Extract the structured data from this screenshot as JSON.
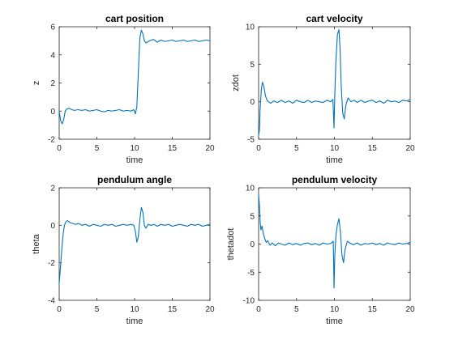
{
  "chart_data": [
    {
      "type": "line",
      "title": "cart position",
      "xlabel": "time",
      "ylabel": "z",
      "xlim": [
        0,
        20
      ],
      "ylim": [
        -2,
        6
      ],
      "xticks": [
        "0",
        "5",
        "10",
        "15",
        "20"
      ],
      "yticks": [
        "-2",
        "0",
        "2",
        "4",
        "6"
      ],
      "grid": false,
      "series": [
        {
          "color": "#0072BD",
          "x": [
            0,
            0.2,
            0.4,
            0.6,
            0.8,
            1.0,
            1.3,
            1.7,
            2.0,
            2.5,
            3.0,
            3.5,
            4.0,
            4.5,
            5.0,
            5.5,
            6.0,
            6.5,
            7.0,
            7.5,
            8.0,
            8.5,
            9.0,
            9.5,
            9.9,
            10.1,
            10.3,
            10.5,
            10.7,
            10.9,
            11.1,
            11.3,
            11.5,
            12.0,
            12.5,
            13.0,
            13.5,
            14.0,
            14.5,
            15.0,
            15.5,
            16.0,
            16.5,
            17.0,
            17.5,
            18.0,
            18.5,
            19.0,
            19.5,
            20.0
          ],
          "y": [
            0,
            -0.7,
            -0.9,
            -0.6,
            0.0,
            0.15,
            0.2,
            0.1,
            0.05,
            0.1,
            0.05,
            0.1,
            0.0,
            0.05,
            0.1,
            0.0,
            -0.05,
            0.05,
            0.0,
            0.05,
            0.1,
            0.0,
            0.05,
            0.0,
            0.1,
            -0.2,
            0.3,
            2.8,
            5.2,
            5.75,
            5.5,
            5.0,
            4.85,
            5.0,
            5.1,
            4.9,
            5.05,
            4.95,
            5.0,
            5.05,
            4.95,
            5.0,
            5.05,
            4.95,
            5.0,
            5.05,
            4.95,
            5.0,
            5.05,
            5.0
          ]
        }
      ]
    },
    {
      "type": "line",
      "title": "cart velocity",
      "xlabel": "time",
      "ylabel": "zdot",
      "xlim": [
        0,
        20
      ],
      "ylim": [
        -5,
        10
      ],
      "xticks": [
        "0",
        "5",
        "10",
        "15",
        "20"
      ],
      "yticks": [
        "-5",
        "0",
        "5",
        "10"
      ],
      "grid": false,
      "series": [
        {
          "color": "#0072BD",
          "x": [
            0,
            0.1,
            0.2,
            0.35,
            0.5,
            0.7,
            0.9,
            1.1,
            1.3,
            1.6,
            2.0,
            2.5,
            3.0,
            3.5,
            4.0,
            4.5,
            5.0,
            5.5,
            6.0,
            6.5,
            7.0,
            7.5,
            8.0,
            8.5,
            9.0,
            9.5,
            9.8,
            9.95,
            10.05,
            10.2,
            10.4,
            10.6,
            10.75,
            10.9,
            11.1,
            11.3,
            11.5,
            11.8,
            12.2,
            12.6,
            13.0,
            13.5,
            14.0,
            14.5,
            15.0,
            15.5,
            16.0,
            16.5,
            17.0,
            17.5,
            18.0,
            18.5,
            19.0,
            19.5,
            20.0
          ],
          "y": [
            -4.5,
            -3.8,
            -1.0,
            1.5,
            2.6,
            2.0,
            0.8,
            0.2,
            0.0,
            -0.2,
            0.1,
            -0.1,
            0.2,
            -0.1,
            0.1,
            -0.2,
            0.2,
            0.0,
            -0.1,
            0.2,
            -0.1,
            0.1,
            0.0,
            -0.1,
            0.2,
            0.0,
            0.3,
            -3.5,
            1.0,
            5.5,
            9.0,
            9.6,
            7.0,
            2.0,
            -1.5,
            -2.3,
            -0.5,
            0.5,
            0.0,
            0.2,
            -0.1,
            0.2,
            -0.1,
            0.1,
            0.2,
            -0.1,
            0.1,
            -0.2,
            0.2,
            0.0,
            0.1,
            -0.1,
            0.2,
            0.1,
            0.3
          ]
        }
      ]
    },
    {
      "type": "line",
      "title": "pendulum angle",
      "xlabel": "time",
      "ylabel": "theta",
      "xlim": [
        0,
        20
      ],
      "ylim": [
        -4,
        2
      ],
      "xticks": [
        "0",
        "5",
        "10",
        "15",
        "20"
      ],
      "yticks": [
        "-4",
        "-2",
        "0",
        "2"
      ],
      "grid": false,
      "series": [
        {
          "color": "#0072BD",
          "x": [
            0,
            0.1,
            0.25,
            0.4,
            0.55,
            0.7,
            0.9,
            1.1,
            1.4,
            1.8,
            2.2,
            2.6,
            3.0,
            3.5,
            4.0,
            4.5,
            5.0,
            5.5,
            6.0,
            6.5,
            7.0,
            7.5,
            8.0,
            8.5,
            9.0,
            9.5,
            9.9,
            10.1,
            10.3,
            10.5,
            10.7,
            10.9,
            11.1,
            11.3,
            11.5,
            11.8,
            12.2,
            12.6,
            13.0,
            13.5,
            14.0,
            14.5,
            15.0,
            15.5,
            16.0,
            16.5,
            17.0,
            17.5,
            18.0,
            18.5,
            19.0,
            19.5,
            20.0
          ],
          "y": [
            -3.1,
            -2.6,
            -1.8,
            -1.0,
            -0.4,
            0.0,
            0.2,
            0.25,
            0.15,
            0.1,
            0.05,
            0.1,
            0.0,
            0.05,
            -0.05,
            0.05,
            0.0,
            -0.05,
            0.05,
            0.0,
            0.05,
            -0.05,
            0.0,
            0.05,
            0.0,
            0.05,
            0.0,
            -0.3,
            -0.9,
            -0.6,
            0.3,
            0.95,
            0.7,
            0.0,
            -0.15,
            0.05,
            0.0,
            0.05,
            -0.05,
            0.05,
            0.0,
            0.05,
            -0.05,
            0.0,
            0.05,
            0.0,
            -0.05,
            0.05,
            0.0,
            0.05,
            -0.05,
            0.0,
            0.05
          ]
        }
      ]
    },
    {
      "type": "line",
      "title": "pendulum velocity",
      "xlabel": "time",
      "ylabel": "thetadot",
      "xlim": [
        0,
        20
      ],
      "ylim": [
        -10,
        10
      ],
      "xticks": [
        "0",
        "5",
        "10",
        "15",
        "20"
      ],
      "yticks": [
        "-10",
        "-5",
        "0",
        "5",
        "10"
      ],
      "grid": false,
      "series": [
        {
          "color": "#0072BD",
          "x": [
            0,
            0.1,
            0.2,
            0.3,
            0.45,
            0.6,
            0.8,
            1.0,
            1.2,
            1.5,
            1.8,
            2.2,
            2.6,
            3.0,
            3.5,
            4.0,
            4.5,
            5.0,
            5.5,
            6.0,
            6.5,
            7.0,
            7.5,
            8.0,
            8.5,
            9.0,
            9.5,
            9.85,
            9.95,
            10.05,
            10.2,
            10.4,
            10.6,
            10.8,
            11.0,
            11.2,
            11.4,
            11.7,
            12.0,
            12.5,
            13.0,
            13.5,
            14.0,
            14.5,
            15.0,
            15.5,
            16.0,
            16.5,
            17.0,
            17.5,
            18.0,
            18.5,
            19.0,
            19.5,
            20.0
          ],
          "y": [
            8.8,
            7.0,
            4.0,
            2.5,
            3.2,
            2.0,
            1.0,
            0.3,
            0.6,
            -0.2,
            0.2,
            -0.3,
            0.2,
            0.0,
            -0.2,
            0.2,
            -0.1,
            0.1,
            -0.2,
            0.1,
            0.2,
            -0.1,
            0.1,
            -0.2,
            0.2,
            0.0,
            0.1,
            0.5,
            -7.8,
            -2.0,
            1.5,
            3.5,
            4.5,
            2.0,
            -2.0,
            -3.3,
            -1.0,
            0.5,
            0.2,
            -0.1,
            0.2,
            -0.2,
            0.1,
            0.0,
            0.2,
            -0.1,
            0.1,
            -0.2,
            0.2,
            0.0,
            -0.1,
            0.2,
            0.0,
            0.1,
            0.3
          ]
        }
      ]
    }
  ]
}
